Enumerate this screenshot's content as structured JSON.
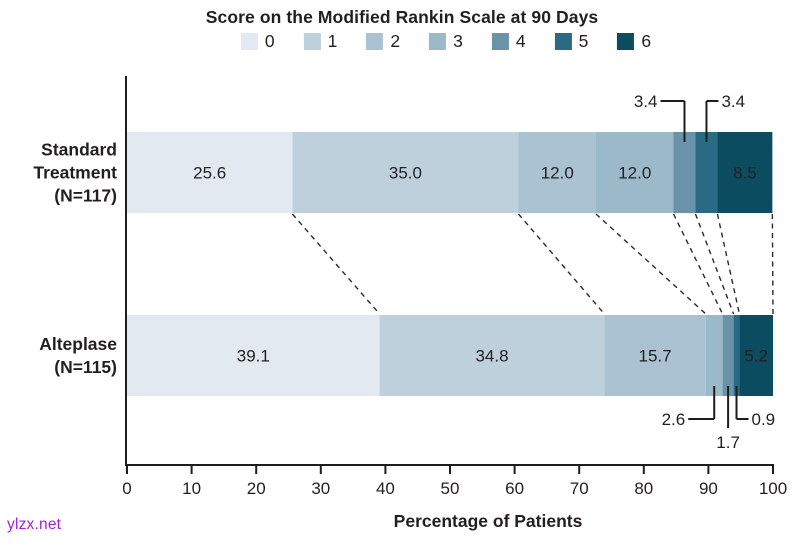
{
  "title": "Score on the Modified Rankin Scale at 90 Days",
  "watermark": "ylzx.net",
  "watermark_color": "#a21ee6",
  "chart_data": {
    "type": "bar",
    "orientation": "horizontal",
    "stacked": true,
    "title": "Score on the Modified Rankin Scale at 90 Days",
    "xlabel": "Percentage of Patients",
    "xlim": [
      0,
      100
    ],
    "x_ticks": [
      0,
      10,
      20,
      30,
      40,
      50,
      60,
      70,
      80,
      90,
      100
    ],
    "legend": {
      "position": "top",
      "labels": [
        "0",
        "1",
        "2",
        "3",
        "4",
        "5",
        "6"
      ]
    },
    "colors": [
      "#e2e9f0",
      "#bed0dc",
      "#aac2d1",
      "#9cb9ca",
      "#6a93a9",
      "#2b6a84",
      "#0b4c61"
    ],
    "rows": [
      {
        "name": "Standard Treatment (N=117)",
        "label_lines": [
          "Standard",
          "Treatment",
          "(N=117)"
        ],
        "values": [
          25.6,
          35.0,
          12.0,
          12.0,
          3.4,
          3.4,
          8.5
        ],
        "callouts": [
          {
            "segment": 4,
            "side": "top",
            "text_pos": "left"
          },
          {
            "segment": 5,
            "side": "top",
            "text_pos": "right"
          }
        ]
      },
      {
        "name": "Alteplase (N=115)",
        "label_lines": [
          "Alteplase",
          "(N=115)"
        ],
        "values": [
          39.1,
          34.8,
          15.7,
          2.6,
          1.7,
          0.9,
          5.2
        ],
        "callouts": [
          {
            "segment": 3,
            "side": "bottom",
            "text_pos": "left"
          },
          {
            "segment": 4,
            "side": "bottom",
            "text_pos": "below"
          },
          {
            "segment": 5,
            "side": "bottom",
            "text_pos": "right"
          }
        ]
      }
    ],
    "connectors": "dashed lines join corresponding segment boundaries of the two bars"
  }
}
